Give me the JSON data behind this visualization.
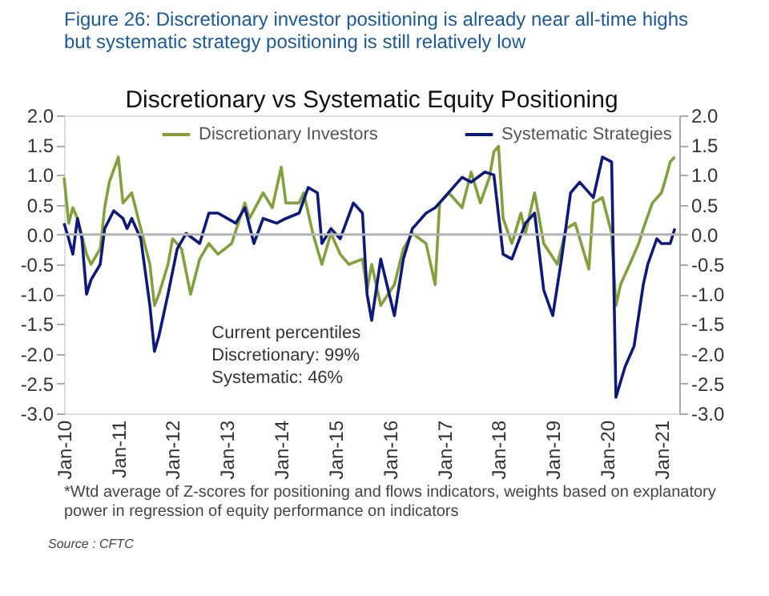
{
  "chart_data": {
    "type": "line",
    "title": "Figure 26: Discretionary investor positioning is already near all-time highs but systematic strategy positioning is still relatively low",
    "subtitle": "Discretionary  vs Systematic Equity Positioning",
    "annotations": [
      "Current percentiles\nDiscretionary: 99%\nSystematic: 46%",
      "*Wtd average of Z-scores for positioning and flows indicators, weights based on explanatory power in regression of equity performance on indicators",
      "Source : CFTC"
    ],
    "series": [
      {
        "name": "Discretionary Investors",
        "color": "#84a03c",
        "x": [
          "2010-01",
          "2010-02",
          "2010-03",
          "2010-04",
          "2010-06",
          "2010-07",
          "2010-09",
          "2010-10",
          "2010-11",
          "2011-01",
          "2011-02",
          "2011-04",
          "2011-06",
          "2011-08",
          "2011-09",
          "2011-10",
          "2011-12",
          "2012-01",
          "2012-03",
          "2012-05",
          "2012-07",
          "2012-09",
          "2012-11",
          "2013-02",
          "2013-05",
          "2013-06",
          "2013-09",
          "2013-11",
          "2014-01",
          "2014-02",
          "2014-05",
          "2014-06",
          "2014-08",
          "2014-10",
          "2014-12",
          "2015-02",
          "2015-04",
          "2015-07",
          "2015-08",
          "2015-09",
          "2015-11",
          "2016-02",
          "2016-04",
          "2016-06",
          "2016-09",
          "2016-11",
          "2016-12",
          "2017-02",
          "2017-05",
          "2017-07",
          "2017-09",
          "2017-11",
          "2017-12",
          "2018-01",
          "2018-02",
          "2018-04",
          "2018-06",
          "2018-07",
          "2018-09",
          "2018-11",
          "2019-02",
          "2019-04",
          "2019-06",
          "2019-09",
          "2019-10",
          "2019-12",
          "2020-02",
          "2020-03",
          "2020-04",
          "2020-06",
          "2020-08",
          "2020-09",
          "2020-11",
          "2021-01",
          "2021-02",
          "2021-03",
          "2021-04"
        ],
        "values": [
          0.96,
          0.19,
          0.45,
          0.27,
          -0.33,
          -0.5,
          -0.24,
          0.45,
          0.88,
          1.3,
          0.53,
          0.7,
          0.1,
          -0.5,
          -1.19,
          -1.0,
          -0.5,
          -0.07,
          -0.24,
          -1.0,
          -0.41,
          -0.15,
          -0.33,
          -0.15,
          0.53,
          0.27,
          0.7,
          0.45,
          1.13,
          0.53,
          0.53,
          0.7,
          0.02,
          -0.5,
          0.02,
          -0.33,
          -0.5,
          -0.41,
          -0.93,
          -0.5,
          -1.19,
          -0.84,
          -0.24,
          0.02,
          -0.15,
          -0.84,
          0.53,
          0.7,
          0.45,
          1.05,
          0.53,
          0.96,
          1.39,
          1.48,
          0.27,
          -0.15,
          0.36,
          0.02,
          0.7,
          -0.15,
          -0.5,
          0.1,
          0.19,
          -0.58,
          0.53,
          0.62,
          0.02,
          -1.19,
          -0.84,
          -0.5,
          -0.15,
          0.1,
          0.53,
          0.7,
          0.96,
          1.22,
          1.3
        ]
      },
      {
        "name": "Systematic Strategies",
        "color": "#0d1a7c",
        "x": [
          "2010-01",
          "2010-02",
          "2010-03",
          "2010-04",
          "2010-05",
          "2010-06",
          "2010-07",
          "2010-09",
          "2010-10",
          "2010-12",
          "2011-02",
          "2011-03",
          "2011-04",
          "2011-06",
          "2011-08",
          "2011-09",
          "2011-10",
          "2011-12",
          "2012-02",
          "2012-04",
          "2012-07",
          "2012-09",
          "2012-11",
          "2013-03",
          "2013-05",
          "2013-07",
          "2013-09",
          "2013-12",
          "2014-02",
          "2014-05",
          "2014-07",
          "2014-09",
          "2014-10",
          "2014-12",
          "2015-02",
          "2015-05",
          "2015-07",
          "2015-08",
          "2015-09",
          "2015-11",
          "2016-02",
          "2016-04",
          "2016-06",
          "2016-09",
          "2016-11",
          "2017-01",
          "2017-05",
          "2017-07",
          "2017-10",
          "2017-12",
          "2018-02",
          "2018-04",
          "2018-07",
          "2018-09",
          "2018-11",
          "2019-01",
          "2019-03",
          "2019-05",
          "2019-07",
          "2019-10",
          "2019-12",
          "2020-02",
          "2020-03",
          "2020-05",
          "2020-07",
          "2020-09",
          "2020-10",
          "2020-12",
          "2021-01",
          "2021-03",
          "2021-04"
        ],
        "values": [
          0.19,
          -0.07,
          -0.33,
          0.27,
          -0.07,
          -1.0,
          -0.76,
          -0.5,
          0.1,
          0.4,
          0.27,
          0.1,
          0.27,
          -0.07,
          -1.19,
          -1.96,
          -1.7,
          -1.0,
          -0.24,
          0.02,
          -0.15,
          0.36,
          0.36,
          0.19,
          0.45,
          -0.15,
          0.27,
          0.19,
          0.27,
          0.36,
          0.79,
          0.7,
          -0.15,
          0.1,
          -0.07,
          0.53,
          0.36,
          -1.0,
          -1.44,
          -0.41,
          -1.36,
          -0.41,
          0.1,
          0.36,
          0.45,
          0.62,
          0.96,
          0.88,
          1.05,
          1.0,
          -0.33,
          -0.41,
          0.19,
          0.36,
          -0.93,
          -1.36,
          -0.41,
          0.7,
          0.88,
          0.62,
          1.3,
          1.22,
          -2.73,
          -2.22,
          -1.87,
          -0.84,
          -0.5,
          -0.07,
          -0.15,
          -0.15,
          0.1
        ]
      }
    ],
    "xlim": [
      "2010-01",
      "2021-05"
    ],
    "xticks": [
      {
        "value": "2010-01",
        "label": "Jan-10"
      },
      {
        "value": "2011-01",
        "label": "Jan-11"
      },
      {
        "value": "2012-01",
        "label": "Jan-12"
      },
      {
        "value": "2013-01",
        "label": "Jan-13"
      },
      {
        "value": "2014-01",
        "label": "Jan-14"
      },
      {
        "value": "2015-01",
        "label": "Jan-15"
      },
      {
        "value": "2016-01",
        "label": "Jan-16"
      },
      {
        "value": "2017-01",
        "label": "Jan-17"
      },
      {
        "value": "2018-01",
        "label": "Jan-18"
      },
      {
        "value": "2019-01",
        "label": "Jan-19"
      },
      {
        "value": "2020-01",
        "label": "Jan-20"
      },
      {
        "value": "2021-01",
        "label": "Jan-21"
      }
    ],
    "ylim": [
      -3.0,
      2.0
    ],
    "yticks": [
      {
        "value": -3,
        "label": "-3.0"
      },
      {
        "value": -2.5,
        "label": "-2.5"
      },
      {
        "value": -2,
        "label": "-2.0"
      },
      {
        "value": -1.5,
        "label": "-1.5"
      },
      {
        "value": -1,
        "label": "-1.0"
      },
      {
        "value": -0.5,
        "label": "-0.5"
      },
      {
        "value": 0,
        "label": "0.0"
      },
      {
        "value": 0.5,
        "label": "0.5"
      },
      {
        "value": 1,
        "label": "1.0"
      },
      {
        "value": 1.5,
        "label": "1.5"
      },
      {
        "value": 2,
        "label": "2.0"
      }
    ],
    "y2lim": [
      -3.0,
      2.0
    ],
    "y2ticks": [
      {
        "value": -3,
        "label": "-3.0"
      },
      {
        "value": -2.5,
        "label": "-2.5"
      },
      {
        "value": -2,
        "label": "-2.0"
      },
      {
        "value": -1.5,
        "label": "-1.5"
      },
      {
        "value": -1,
        "label": "-1.0"
      },
      {
        "value": -0.5,
        "label": "-0.5"
      },
      {
        "value": 0,
        "label": "0.0"
      },
      {
        "value": 0.5,
        "label": "0.5"
      },
      {
        "value": 1,
        "label": "1.0"
      },
      {
        "value": 1.5,
        "label": "1.5"
      },
      {
        "value": 2,
        "label": "2.0"
      }
    ],
    "ref_lines": [
      {
        "axis": "y",
        "value": 0,
        "color": "#b4b4b4"
      }
    ],
    "legend": "top",
    "grid": false,
    "marker": "none",
    "line_style": "solid"
  }
}
